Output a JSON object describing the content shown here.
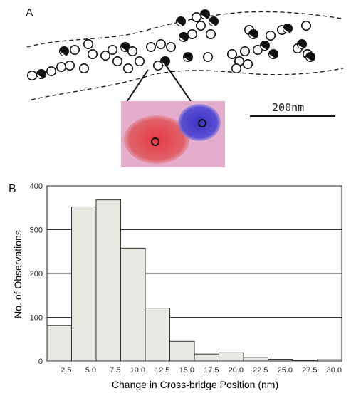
{
  "panel_a": {
    "letter": "A",
    "scale_bar_label": "200nm"
  },
  "panel_b": {
    "letter": "B"
  },
  "chart_data": {
    "type": "bar",
    "title": "",
    "xlabel": "Change in Cross-bridge Position (nm)",
    "ylabel": "No. of Observations",
    "categories": [
      "0-2.5",
      "2.5-5.0",
      "5.0-7.5",
      "7.5-10.0",
      "10.0-12.5",
      "12.5-15.0",
      "15.0-17.5",
      "17.5-20.0",
      "20.0-22.5",
      "22.5-25.0",
      "25.0-27.5",
      "27.5-30.0"
    ],
    "x_tick_labels": [
      "2.5",
      "5.0",
      "7.5",
      "10.0",
      "12.5",
      "15.0",
      "17.5",
      "20.0",
      "22.5",
      "25.0",
      "27.5",
      "30.0"
    ],
    "values": [
      81,
      352,
      368,
      258,
      121,
      45,
      16,
      19,
      8,
      4,
      1,
      3
    ],
    "ylim": [
      0,
      400
    ],
    "y_ticks": [
      0,
      100,
      200,
      300,
      400
    ],
    "grid": true,
    "bar_fill": "#e8e8e3",
    "bar_stroke": "#333333"
  }
}
